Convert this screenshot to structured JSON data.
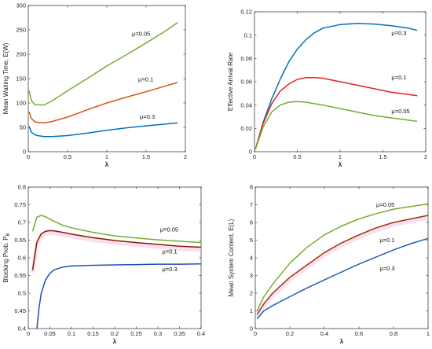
{
  "chart_data": [
    {
      "type": "line",
      "xlabel": "λ",
      "ylabel": "Mean Waiting Time, E(W)",
      "xlim": [
        0,
        2
      ],
      "ylim": [
        0,
        300
      ],
      "xticks": [
        "0",
        "0.5",
        "1",
        "1.5",
        "2"
      ],
      "yticks": [
        "0",
        "50",
        "100",
        "150",
        "200",
        "250",
        "300"
      ],
      "grid": false,
      "series": [
        {
          "name": "μ=0.05",
          "color": "#77ac30",
          "x": [
            0.01,
            0.04,
            0.08,
            0.12,
            0.2,
            0.3,
            0.5,
            0.75,
            1.0,
            1.25,
            1.5,
            1.75,
            1.9
          ],
          "y": [
            125,
            105,
            97,
            96,
            96,
            104,
            125,
            150,
            176,
            199,
            223,
            248,
            265
          ]
        },
        {
          "name": "μ=0.1",
          "color": "#d95319",
          "x": [
            0.01,
            0.04,
            0.08,
            0.12,
            0.2,
            0.3,
            0.5,
            0.75,
            1.0,
            1.25,
            1.5,
            1.75,
            1.9
          ],
          "y": [
            82,
            68,
            62,
            60,
            59,
            62,
            71,
            86,
            100,
            112,
            123,
            135,
            142
          ]
        },
        {
          "name": "μ=0.3",
          "color": "#0072bd",
          "x": [
            0.01,
            0.04,
            0.08,
            0.12,
            0.2,
            0.3,
            0.5,
            0.75,
            1.0,
            1.25,
            1.5,
            1.75,
            1.9
          ],
          "y": [
            52,
            40,
            35,
            33,
            31,
            31,
            33,
            38,
            44,
            49,
            53,
            57,
            59
          ]
        }
      ],
      "labels": [
        {
          "text": "μ=0.05",
          "x": 1.32,
          "y": 238
        },
        {
          "text": "μ=0.1",
          "x": 1.4,
          "y": 144
        },
        {
          "text": "μ=0.3",
          "x": 1.42,
          "y": 68
        }
      ]
    },
    {
      "type": "line",
      "xlabel": "λ",
      "ylabel": "Effective Arrival Rate",
      "xlim": [
        0,
        2
      ],
      "ylim": [
        0,
        0.12
      ],
      "xticks": [
        "0",
        "0.5",
        "1",
        "1.5",
        "2"
      ],
      "yticks": [
        "0",
        "0.02",
        "0.04",
        "0.06",
        "0.08",
        "0.1",
        "0.12"
      ],
      "grid": false,
      "series": [
        {
          "name": "μ=0.3",
          "color": "#0072bd",
          "x": [
            0.01,
            0.1,
            0.2,
            0.3,
            0.4,
            0.5,
            0.6,
            0.7,
            0.8,
            1.0,
            1.2,
            1.4,
            1.6,
            1.8,
            1.9
          ],
          "y": [
            0.002,
            0.025,
            0.045,
            0.062,
            0.077,
            0.088,
            0.096,
            0.102,
            0.106,
            0.109,
            0.11,
            0.1095,
            0.108,
            0.106,
            0.104
          ]
        },
        {
          "name": "μ=0.1",
          "color": "#e52121",
          "x": [
            0.01,
            0.1,
            0.2,
            0.3,
            0.4,
            0.5,
            0.6,
            0.7,
            0.8,
            1.0,
            1.2,
            1.4,
            1.6,
            1.8,
            1.9
          ],
          "y": [
            0.002,
            0.024,
            0.041,
            0.052,
            0.058,
            0.062,
            0.0635,
            0.0635,
            0.063,
            0.06,
            0.057,
            0.054,
            0.051,
            0.049,
            0.048
          ]
        },
        {
          "name": "μ=0.05",
          "color": "#77ac30",
          "x": [
            0.01,
            0.1,
            0.2,
            0.3,
            0.4,
            0.5,
            0.6,
            0.8,
            1.0,
            1.2,
            1.4,
            1.6,
            1.8,
            1.9
          ],
          "y": [
            0.002,
            0.021,
            0.034,
            0.04,
            0.0425,
            0.043,
            0.0425,
            0.04,
            0.037,
            0.034,
            0.031,
            0.029,
            0.027,
            0.026
          ]
        }
      ],
      "labels": [
        {
          "text": "μ=0.3",
          "x": 1.6,
          "y": 0.1
        },
        {
          "text": "μ=0.1",
          "x": 1.6,
          "y": 0.062
        },
        {
          "text": "μ=0.05",
          "x": 1.6,
          "y": 0.033
        }
      ]
    },
    {
      "type": "line",
      "xlabel": "λ",
      "ylabel": "Blocking Prob. P",
      "ylabel_sub": "B",
      "xlim": [
        0,
        0.4
      ],
      "ylim": [
        0.4,
        0.8
      ],
      "xticks": [
        "0",
        "0.05",
        "0.1",
        "0.15",
        "0.2",
        "0.25",
        "0.3",
        "0.35",
        "0.4"
      ],
      "yticks": [
        "0.4",
        "0.45",
        "0.5",
        "0.55",
        "0.6",
        "0.65",
        "0.7",
        "0.75",
        "0.8"
      ],
      "grid": false,
      "series": [
        {
          "name": "μ=0.05",
          "color": "#77ac30",
          "x": [
            0.01,
            0.02,
            0.03,
            0.04,
            0.06,
            0.08,
            0.1,
            0.15,
            0.2,
            0.25,
            0.3,
            0.35,
            0.4
          ],
          "y": [
            0.675,
            0.715,
            0.72,
            0.716,
            0.703,
            0.692,
            0.685,
            0.672,
            0.662,
            0.656,
            0.651,
            0.647,
            0.643
          ]
        },
        {
          "name": "μ=0.1",
          "color": "#8b1a00",
          "x": [
            0.01,
            0.02,
            0.03,
            0.04,
            0.05,
            0.06,
            0.08,
            0.1,
            0.15,
            0.2,
            0.25,
            0.3,
            0.35,
            0.4
          ],
          "y": [
            0.565,
            0.645,
            0.668,
            0.675,
            0.677,
            0.676,
            0.672,
            0.667,
            0.657,
            0.649,
            0.643,
            0.638,
            0.633,
            0.63
          ]
        },
        {
          "name": "μ=0.3",
          "color": "#1f4fb4",
          "x": [
            0.02,
            0.025,
            0.03,
            0.04,
            0.05,
            0.06,
            0.08,
            0.1,
            0.15,
            0.2,
            0.25,
            0.3,
            0.35,
            0.4
          ],
          "y": [
            0.4,
            0.46,
            0.5,
            0.538,
            0.556,
            0.566,
            0.574,
            0.577,
            0.579,
            0.58,
            0.581,
            0.582,
            0.582,
            0.583
          ]
        }
      ],
      "labels": [
        {
          "text": "μ=0.05",
          "x": 0.305,
          "y": 0.675
        },
        {
          "text": "μ=0.1",
          "x": 0.31,
          "y": 0.612
        },
        {
          "text": "μ=0.3",
          "x": 0.31,
          "y": 0.562
        }
      ]
    },
    {
      "type": "line",
      "xlabel": "λ",
      "ylabel": "Mean System Content, E(L)",
      "xlim": [
        0,
        1
      ],
      "ylim": [
        0,
        8
      ],
      "xticks": [
        "0",
        "0.2",
        "0.4",
        "0.6",
        "0.8",
        "1"
      ],
      "yticks": [
        "0",
        "1",
        "2",
        "3",
        "4",
        "5",
        "6",
        "7",
        "8"
      ],
      "grid": false,
      "series": [
        {
          "name": "μ=0.05",
          "color": "#77ac30",
          "x": [
            0.01,
            0.05,
            0.1,
            0.2,
            0.3,
            0.4,
            0.5,
            0.6,
            0.7,
            0.8,
            0.9,
            1.0
          ],
          "y": [
            1.0,
            1.8,
            2.5,
            3.7,
            4.6,
            5.3,
            5.8,
            6.2,
            6.5,
            6.75,
            6.9,
            7.05
          ]
        },
        {
          "name": "μ=0.1",
          "color": "#a0300f",
          "x": [
            0.01,
            0.05,
            0.1,
            0.2,
            0.3,
            0.4,
            0.5,
            0.6,
            0.7,
            0.8,
            0.9,
            1.0
          ],
          "y": [
            0.8,
            1.4,
            2.0,
            2.9,
            3.6,
            4.3,
            4.85,
            5.3,
            5.7,
            6.0,
            6.2,
            6.4
          ]
        },
        {
          "name": "μ=0.3",
          "color": "#1f5fb4",
          "x": [
            0.01,
            0.05,
            0.1,
            0.2,
            0.3,
            0.4,
            0.5,
            0.6,
            0.7,
            0.8,
            0.9,
            1.0
          ],
          "y": [
            0.55,
            1.0,
            1.3,
            1.8,
            2.3,
            2.75,
            3.2,
            3.65,
            4.05,
            4.45,
            4.8,
            5.1
          ]
        }
      ],
      "labels": [
        {
          "text": "μ=0.05",
          "x": 0.7,
          "y": 6.9
        },
        {
          "text": "μ=0.1",
          "x": 0.72,
          "y": 4.9
        },
        {
          "text": "μ=0.3",
          "x": 0.72,
          "y": 3.3
        }
      ]
    }
  ]
}
